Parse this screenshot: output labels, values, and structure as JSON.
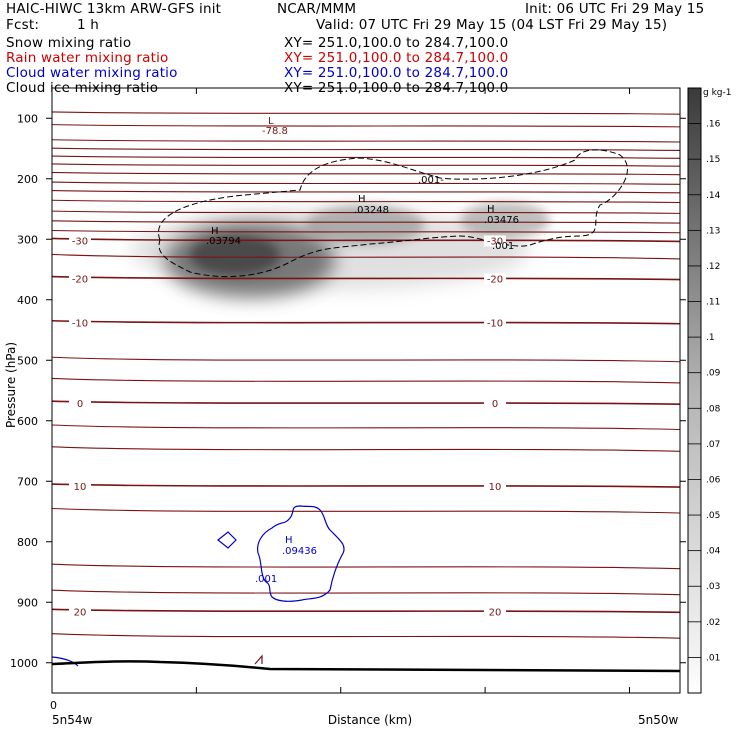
{
  "header": {
    "title_left": "HAIC-HIWC 13km ARW-GFS init",
    "org": "NCAR/MMM",
    "init": "Init: 06 UTC Fri 29 May 15",
    "fcst_label": "Fcst:",
    "fcst_value": "1 h",
    "valid": "Valid: 07 UTC Fri 29 May 15 (04 LST Fri 29 May 15)"
  },
  "fields": [
    {
      "name": "Snow mixing ratio",
      "xy": "XY= 251.0,100.0 to 284.7,100.0",
      "color": "#000000"
    },
    {
      "name": "Rain water mixing ratio",
      "xy": "XY= 251.0,100.0 to 284.7,100.0",
      "color": "#d00000"
    },
    {
      "name": "Cloud water mixing ratio",
      "xy": "XY= 251.0,100.0 to 284.7,100.0",
      "color": "#0000c8"
    },
    {
      "name": "Cloud ice mixing ratio",
      "xy": "XY= 251.0,100.0 to 284.7,100.0",
      "color": "#000000"
    }
  ],
  "chart_data": {
    "type": "cross-section",
    "ylabel": "Pressure (hPa)",
    "xlabel": "Distance (km)",
    "x_start_label": "5n54w",
    "x_end_label": "5n50w",
    "x_origin_label": "0",
    "y_ticks": [
      100,
      200,
      300,
      400,
      500,
      600,
      700,
      800,
      900,
      1000
    ],
    "ylim": [
      50,
      1050
    ],
    "colorbar": {
      "unit": "g kg-1",
      "ticks": [
        ".01",
        ".02",
        ".03",
        ".04",
        ".05",
        ".06",
        ".07",
        ".08",
        ".09",
        ".1",
        ".11",
        ".12",
        ".13",
        ".14",
        ".15",
        ".16"
      ]
    },
    "temperature_contours": {
      "color": "#7a1414",
      "levels": [
        {
          "label": "-30",
          "p": 302
        },
        {
          "label": "-20",
          "p": 365
        },
        {
          "label": "-10",
          "p": 438
        },
        {
          "label": "0",
          "p": 571
        },
        {
          "label": "10",
          "p": 708
        },
        {
          "label": "20",
          "p": 915
        }
      ],
      "upper_level_pressures": [
        92,
        113,
        138,
        152,
        165,
        178,
        192,
        208,
        222,
        238,
        256,
        272,
        288
      ]
    },
    "cloud_ice_contour": {
      "value": ".001",
      "color": "#000000",
      "style": "dashed"
    },
    "cloud_water_contour": {
      "value": ".001",
      "color": "#0000c8",
      "style": "solid"
    },
    "highs": [
      {
        "label": "H",
        "value": ".03794",
        "color": "#000000"
      },
      {
        "label": "H",
        "value": ".03248",
        "color": "#000000"
      },
      {
        "label": "H",
        "value": ".03476",
        "color": "#000000"
      },
      {
        "label": "H",
        "value": ".09436",
        "color": "#0000c8"
      }
    ],
    "lows": [
      {
        "label": "L",
        "value": "-78.8",
        "color": "#7a1414"
      }
    ],
    "label_001_ice": [
      ".001-",
      ".001"
    ],
    "label_001_water": ".001"
  }
}
